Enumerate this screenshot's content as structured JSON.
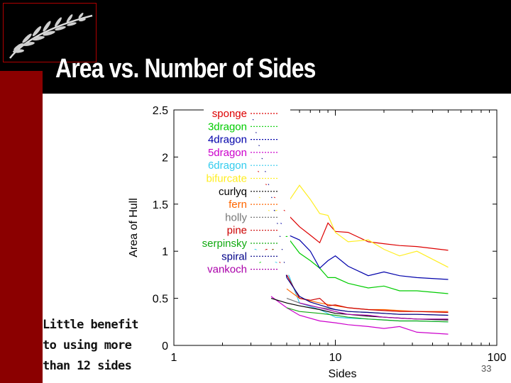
{
  "slide": {
    "title": "Area vs. Number of Sides",
    "callout": "Little benefit\nto using more\nthan 12 sides",
    "page_number": "33"
  },
  "colors": {
    "header_bg": "#000000",
    "side_band": "#8b0000",
    "title_text": "#ffffff"
  },
  "logo": {
    "icon": "silver-fern-icon"
  },
  "chart_data": {
    "type": "line",
    "xlabel": "Sides",
    "ylabel": "Area of Hull",
    "xscale": "log",
    "xlim": [
      1,
      100
    ],
    "ylim": [
      0,
      2.5
    ],
    "x_ticks": [
      1,
      10,
      100
    ],
    "x_tick_labels": [
      "1",
      "10",
      "100"
    ],
    "y_ticks": [
      0,
      0.5,
      1,
      1.5,
      2,
      2.5
    ],
    "y_tick_labels": [
      "0",
      "0.5",
      "1",
      "1.5",
      "2",
      "2.5"
    ],
    "grid": false,
    "legend_position": "top-right",
    "series": [
      {
        "name": "sponge",
        "color": "#dd0000",
        "x": [
          3,
          4,
          5,
          6,
          7,
          8,
          9,
          10,
          12,
          16,
          20,
          25,
          32,
          50
        ],
        "y": [
          1.98,
          1.62,
          1.4,
          1.26,
          1.17,
          1.09,
          1.3,
          1.21,
          1.2,
          1.1,
          1.08,
          1.06,
          1.05,
          1.01
        ]
      },
      {
        "name": "3dragon",
        "color": "#00cc00",
        "x": [
          3,
          4,
          5,
          6,
          7,
          8,
          9,
          10,
          12,
          16,
          20,
          25,
          32,
          50
        ],
        "y": [
          0.78,
          1.0,
          1.16,
          0.98,
          0.9,
          0.82,
          0.72,
          0.72,
          0.66,
          0.61,
          0.63,
          0.58,
          0.58,
          0.55
        ]
      },
      {
        "name": "4dragon",
        "color": "#0000aa",
        "x": [
          4,
          5,
          6,
          7,
          8,
          9,
          10,
          12,
          16,
          20,
          25,
          32,
          50
        ],
        "y": [
          1.5,
          1.18,
          1.12,
          1.0,
          0.82,
          0.9,
          0.95,
          0.84,
          0.74,
          0.78,
          0.74,
          0.72,
          0.7
        ]
      },
      {
        "name": "5dragon",
        "color": "#cc00cc",
        "x": [
          4,
          5,
          6,
          8,
          10,
          12,
          16,
          20,
          25,
          32,
          50
        ],
        "y": [
          0.52,
          0.4,
          0.32,
          0.26,
          0.24,
          0.22,
          0.2,
          0.18,
          0.2,
          0.14,
          0.12
        ]
      },
      {
        "name": "6dragon",
        "color": "#33ccee",
        "x": [
          3,
          4,
          5,
          6,
          8,
          10,
          12,
          16,
          20,
          25,
          32,
          50
        ],
        "y": [
          1.05,
          0.92,
          0.8,
          0.45,
          0.38,
          0.3,
          0.29,
          0.28,
          0.27,
          0.26,
          0.26,
          0.25
        ]
      },
      {
        "name": "bifurcate",
        "color": "#ffee22",
        "x": [
          3,
          4,
          5,
          6,
          7,
          8,
          9,
          10,
          12,
          16,
          20,
          25,
          32,
          50
        ],
        "y": [
          1.7,
          1.4,
          1.5,
          1.7,
          1.55,
          1.4,
          1.38,
          1.2,
          1.1,
          1.12,
          1.02,
          0.95,
          1.0,
          0.83
        ]
      },
      {
        "name": "curlyq",
        "color": "#000000",
        "x": [
          4,
          5,
          6,
          8,
          10,
          12,
          16,
          20,
          25,
          32,
          50
        ],
        "y": [
          0.5,
          0.45,
          0.42,
          0.38,
          0.34,
          0.33,
          0.31,
          0.3,
          0.29,
          0.28,
          0.27
        ]
      },
      {
        "name": "fern",
        "color": "#ff6600",
        "x": [
          5,
          6,
          8,
          10,
          12,
          16,
          20,
          25,
          32,
          50
        ],
        "y": [
          0.6,
          0.5,
          0.45,
          0.42,
          0.4,
          0.38,
          0.38,
          0.37,
          0.36,
          0.36
        ]
      },
      {
        "name": "holly",
        "color": "#777777",
        "x": [
          5,
          6,
          8,
          10,
          12,
          16,
          20,
          25,
          32,
          50
        ],
        "y": [
          0.5,
          0.45,
          0.4,
          0.38,
          0.36,
          0.35,
          0.34,
          0.33,
          0.33,
          0.32
        ]
      },
      {
        "name": "pine",
        "color": "#cc0000",
        "x": [
          3,
          4,
          5,
          6,
          7,
          8,
          9,
          10,
          12,
          16,
          20,
          25,
          32,
          50
        ],
        "y": [
          0.92,
          1.05,
          0.75,
          0.5,
          0.48,
          0.5,
          0.42,
          0.43,
          0.4,
          0.38,
          0.37,
          0.36,
          0.36,
          0.35
        ]
      },
      {
        "name": "serpinsky",
        "color": "#11aa11",
        "x": [
          5,
          6,
          8,
          10,
          12,
          16,
          20,
          25,
          32,
          50
        ],
        "y": [
          0.4,
          0.36,
          0.34,
          0.32,
          0.3,
          0.28,
          0.27,
          0.26,
          0.26,
          0.25
        ]
      },
      {
        "name": "spiral",
        "color": "#000088",
        "x": [
          3,
          3.5,
          4,
          4.5,
          5,
          6,
          7,
          8,
          10,
          12,
          16,
          20,
          25,
          32,
          50
        ],
        "y": [
          2.5,
          2.0,
          1.6,
          1.2,
          0.72,
          0.52,
          0.46,
          0.43,
          0.38,
          0.36,
          0.35,
          0.34,
          0.33,
          0.33,
          0.32
        ]
      },
      {
        "name": "vankoch",
        "color": "#aa00aa",
        "x": [
          6,
          8,
          10,
          12,
          16,
          20,
          25,
          32,
          50
        ],
        "y": [
          0.45,
          0.4,
          0.36,
          0.33,
          0.32,
          0.3,
          0.29,
          0.28,
          0.28
        ]
      }
    ]
  }
}
